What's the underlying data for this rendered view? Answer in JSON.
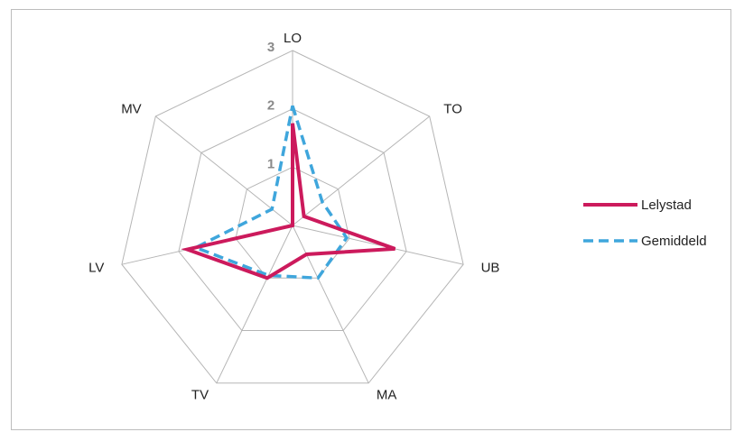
{
  "chart_data": {
    "type": "radar",
    "axes": [
      "LO",
      "TO",
      "UB",
      "MA",
      "TV",
      "LV",
      "MV"
    ],
    "range": [
      0,
      3
    ],
    "ticks": [
      1,
      2,
      3
    ],
    "tick_labels": [
      "1",
      "2",
      "3"
    ],
    "grid": true,
    "legend_position": "right",
    "series": [
      {
        "name": "Lelystad",
        "values": [
          1.75,
          0.25,
          1.8,
          0.55,
          1.0,
          1.85,
          0.0
        ],
        "color": "#cc1a5c",
        "style": "solid"
      },
      {
        "name": "Gemiddeld",
        "values": [
          2.05,
          0.65,
          0.95,
          1.0,
          0.95,
          1.7,
          0.45
        ],
        "color": "#3fa6dc",
        "style": "dashed"
      }
    ]
  },
  "colors": {
    "grid": "#b5b5b5",
    "frame": "#bdbdbd"
  }
}
